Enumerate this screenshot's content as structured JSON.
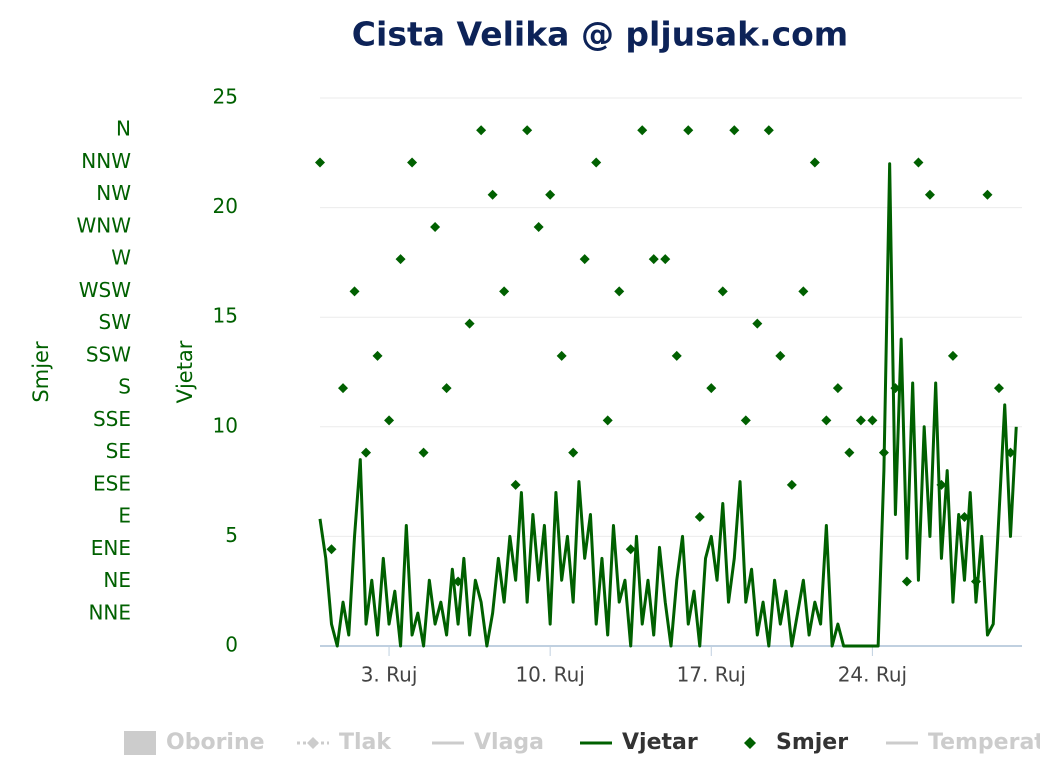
{
  "chart_data": {
    "type": "line",
    "title": "Cista Velika @ pljusak.com",
    "ylabel": "Vjetar",
    "y2label": "Smjer",
    "xlim": [
      0,
      30.5
    ],
    "xticks": [
      {
        "value": 3,
        "label": "3. Ruj"
      },
      {
        "value": 10,
        "label": "10. Ruj"
      },
      {
        "value": 17,
        "label": "17. Ruj"
      },
      {
        "value": 24,
        "label": "24. Ruj"
      }
    ],
    "ylim": [
      0,
      25
    ],
    "yticks": [
      0,
      5,
      10,
      15,
      20,
      25
    ],
    "y2lim": [
      0,
      17
    ],
    "y2ticks": [
      {
        "value": 1,
        "label": "NNE"
      },
      {
        "value": 2,
        "label": "NE"
      },
      {
        "value": 3,
        "label": "ENE"
      },
      {
        "value": 4,
        "label": "E"
      },
      {
        "value": 5,
        "label": "ESE"
      },
      {
        "value": 6,
        "label": "SE"
      },
      {
        "value": 7,
        "label": "SSE"
      },
      {
        "value": 8,
        "label": "S"
      },
      {
        "value": 9,
        "label": "SSW"
      },
      {
        "value": 10,
        "label": "SW"
      },
      {
        "value": 11,
        "label": "WSW"
      },
      {
        "value": 12,
        "label": "W"
      },
      {
        "value": 13,
        "label": "WNW"
      },
      {
        "value": 14,
        "label": "NW"
      },
      {
        "value": 15,
        "label": "NNW"
      },
      {
        "value": 16,
        "label": "N"
      }
    ],
    "grid": true,
    "hidden_series": [
      "Oborine",
      "Tlak",
      "Vlaga",
      "Temperatura"
    ],
    "series": [
      {
        "name": "Vjetar",
        "type": "line",
        "color": "#006000",
        "x": [
          0,
          0.25,
          0.5,
          0.75,
          1,
          1.25,
          1.5,
          1.75,
          2,
          2.25,
          2.5,
          2.75,
          3,
          3.25,
          3.5,
          3.75,
          4,
          4.25,
          4.5,
          4.75,
          5,
          5.25,
          5.5,
          5.75,
          6,
          6.25,
          6.5,
          6.75,
          7,
          7.25,
          7.5,
          7.75,
          8,
          8.25,
          8.5,
          8.75,
          9,
          9.25,
          9.5,
          9.75,
          10,
          10.25,
          10.5,
          10.75,
          11,
          11.25,
          11.5,
          11.75,
          12,
          12.25,
          12.5,
          12.75,
          13,
          13.25,
          13.5,
          13.75,
          14,
          14.25,
          14.5,
          14.75,
          15,
          15.25,
          15.5,
          15.75,
          16,
          16.25,
          16.5,
          16.75,
          17,
          17.25,
          17.5,
          17.75,
          18,
          18.25,
          18.5,
          18.75,
          19,
          19.25,
          19.5,
          19.75,
          20,
          20.25,
          20.5,
          20.75,
          21,
          21.25,
          21.5,
          21.75,
          22,
          22.25,
          22.5,
          22.75,
          23,
          23.25,
          23.5,
          23.75,
          24,
          24.25,
          24.5,
          24.75,
          25,
          25.25,
          25.5,
          25.75,
          26,
          26.25,
          26.5,
          26.75,
          27,
          27.25,
          27.5,
          27.75,
          28,
          28.25,
          28.5,
          28.75,
          29,
          29.25,
          29.5,
          29.75,
          30,
          30.25
        ],
        "values": [
          5.8,
          4,
          1,
          0,
          2,
          0.5,
          5,
          8.5,
          1,
          3,
          0.5,
          4,
          1,
          2.5,
          0,
          5.5,
          0.5,
          1.5,
          0,
          3,
          1,
          2,
          0.5,
          3.5,
          1,
          4,
          0.5,
          3,
          2,
          0,
          1.5,
          4,
          2,
          5,
          3,
          7,
          2,
          6,
          3,
          5.5,
          1,
          7,
          3,
          5,
          2,
          7.5,
          4,
          6,
          1,
          4,
          0.5,
          5.5,
          2,
          3,
          0,
          5,
          1,
          3,
          0.5,
          4.5,
          2,
          0,
          3,
          5,
          1,
          2.5,
          0,
          4,
          5,
          3,
          6.5,
          2,
          4,
          7.5,
          2,
          3.5,
          0.5,
          2,
          0,
          3,
          1,
          2.5,
          0,
          1.5,
          3,
          0.5,
          2,
          1,
          5.5,
          0,
          1,
          0,
          0,
          0,
          0,
          0,
          0,
          0,
          8,
          22,
          6,
          14,
          4,
          12,
          3,
          10,
          5,
          12,
          4,
          8,
          2,
          6,
          3,
          7,
          2,
          5,
          0.5,
          1,
          6,
          11,
          5,
          10
        ]
      },
      {
        "name": "Smjer",
        "type": "scatter",
        "axis": "y2",
        "color": "#006000",
        "x": [
          0,
          0.5,
          1,
          1.5,
          2,
          2.5,
          3,
          3.5,
          4,
          4.5,
          5,
          5.5,
          6,
          6.5,
          7,
          7.5,
          8,
          8.5,
          9,
          9.5,
          10,
          10.5,
          11,
          11.5,
          12,
          12.5,
          13,
          13.5,
          14,
          14.5,
          15,
          15.5,
          16,
          16.5,
          17,
          17.5,
          18,
          18.5,
          19,
          19.5,
          20,
          20.5,
          21,
          21.5,
          22,
          22.5,
          23,
          23.5,
          24,
          24.5,
          25,
          25.5,
          26,
          26.5,
          27,
          27.5,
          28,
          28.5,
          29,
          29.5,
          30
        ],
        "values": [
          15,
          3,
          8,
          11,
          6,
          9,
          7,
          12,
          15,
          6,
          13,
          8,
          2,
          10,
          16,
          14,
          11,
          5,
          16,
          13,
          14,
          9,
          6,
          12,
          15,
          7,
          11,
          3,
          16,
          12,
          12,
          9,
          16,
          4,
          8,
          11,
          16,
          7,
          10,
          16,
          9,
          5,
          11,
          15,
          7,
          8,
          6,
          7,
          7,
          6,
          8,
          2,
          15,
          14,
          5,
          9,
          4,
          2,
          14,
          8,
          6
        ]
      }
    ]
  }
}
